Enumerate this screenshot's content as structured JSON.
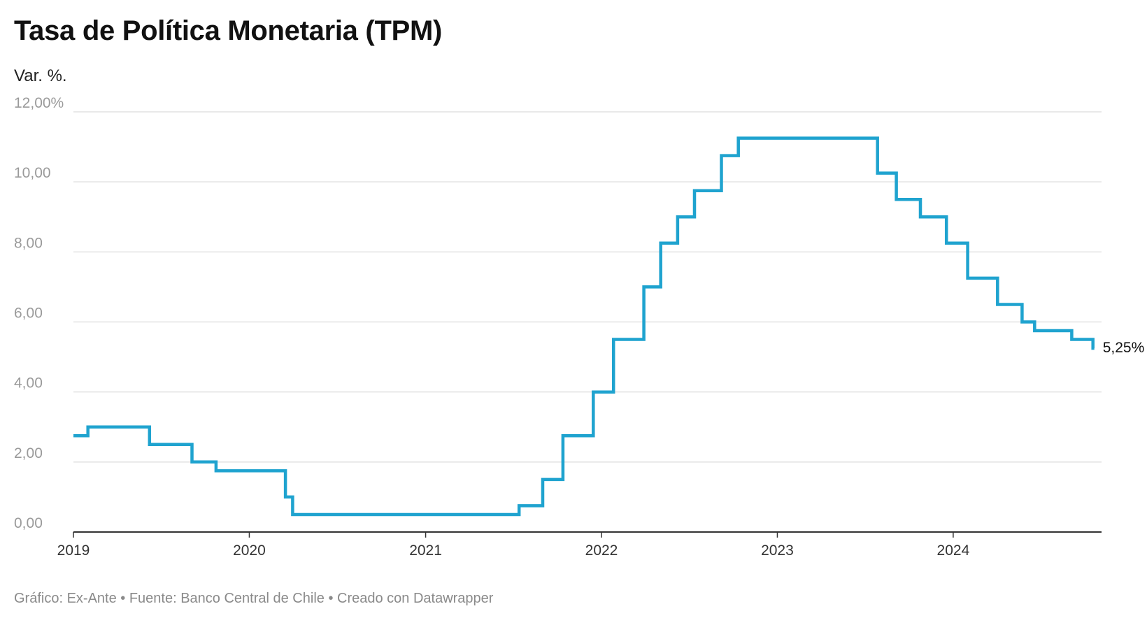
{
  "header": {
    "title": "Tasa de Política Monetaria (TPM)",
    "subtitle": "Var. %."
  },
  "footer": {
    "text": "Gráfico: Ex-Ante • Fuente: Banco Central de Chile • Creado con Datawrapper"
  },
  "colors": {
    "line": "#1fa3cf",
    "grid": "#e2e2e2",
    "axis": "#333333"
  },
  "chart_data": {
    "type": "line",
    "title": "Tasa de Política Monetaria (TPM)",
    "subtitle": "Var. %.",
    "step": true,
    "xlim": [
      "2019-01-01",
      "2024-11-01"
    ],
    "ylim": [
      0,
      12
    ],
    "y_ticks": [
      0,
      2,
      4,
      6,
      8,
      10,
      12
    ],
    "y_tick_labels": [
      "0,00",
      "2,00",
      "4,00",
      "6,00",
      "8,00",
      "10,00",
      "12,00%"
    ],
    "x_ticks": [
      "2019-01-01",
      "2020-01-01",
      "2021-01-01",
      "2022-01-01",
      "2023-01-01",
      "2024-01-01"
    ],
    "x_tick_labels": [
      "2019",
      "2020",
      "2021",
      "2022",
      "2023",
      "2024"
    ],
    "grid": true,
    "series": [
      {
        "values": [
          {
            "x": "2019-01-01",
            "y": 2.75
          },
          {
            "x": "2019-01-31",
            "y": 3.0
          },
          {
            "x": "2019-06-08",
            "y": 2.5
          },
          {
            "x": "2019-09-04",
            "y": 2.0
          },
          {
            "x": "2019-10-24",
            "y": 1.75
          },
          {
            "x": "2020-03-16",
            "y": 1.0
          },
          {
            "x": "2020-03-31",
            "y": 0.5
          },
          {
            "x": "2021-07-14",
            "y": 0.75
          },
          {
            "x": "2021-09-01",
            "y": 1.5
          },
          {
            "x": "2021-10-13",
            "y": 2.75
          },
          {
            "x": "2021-12-15",
            "y": 4.0
          },
          {
            "x": "2022-01-26",
            "y": 5.5
          },
          {
            "x": "2022-03-30",
            "y": 7.0
          },
          {
            "x": "2022-05-04",
            "y": 8.25
          },
          {
            "x": "2022-06-08",
            "y": 9.0
          },
          {
            "x": "2022-07-13",
            "y": 9.75
          },
          {
            "x": "2022-09-07",
            "y": 10.75
          },
          {
            "x": "2022-10-12",
            "y": 11.25
          },
          {
            "x": "2023-07-28",
            "y": 10.25
          },
          {
            "x": "2023-09-05",
            "y": 9.5
          },
          {
            "x": "2023-10-25",
            "y": 9.0
          },
          {
            "x": "2023-12-18",
            "y": 8.25
          },
          {
            "x": "2024-01-31",
            "y": 7.25
          },
          {
            "x": "2024-04-02",
            "y": 6.5
          },
          {
            "x": "2024-05-23",
            "y": 6.0
          },
          {
            "x": "2024-06-18",
            "y": 5.75
          },
          {
            "x": "2024-09-03",
            "y": 5.5
          },
          {
            "x": "2024-10-17",
            "y": 5.25
          }
        ],
        "end": "2024-10-20"
      }
    ],
    "annotations": [
      {
        "text": "5,25%",
        "x": "2024-10-20",
        "y": 5.25
      }
    ]
  }
}
